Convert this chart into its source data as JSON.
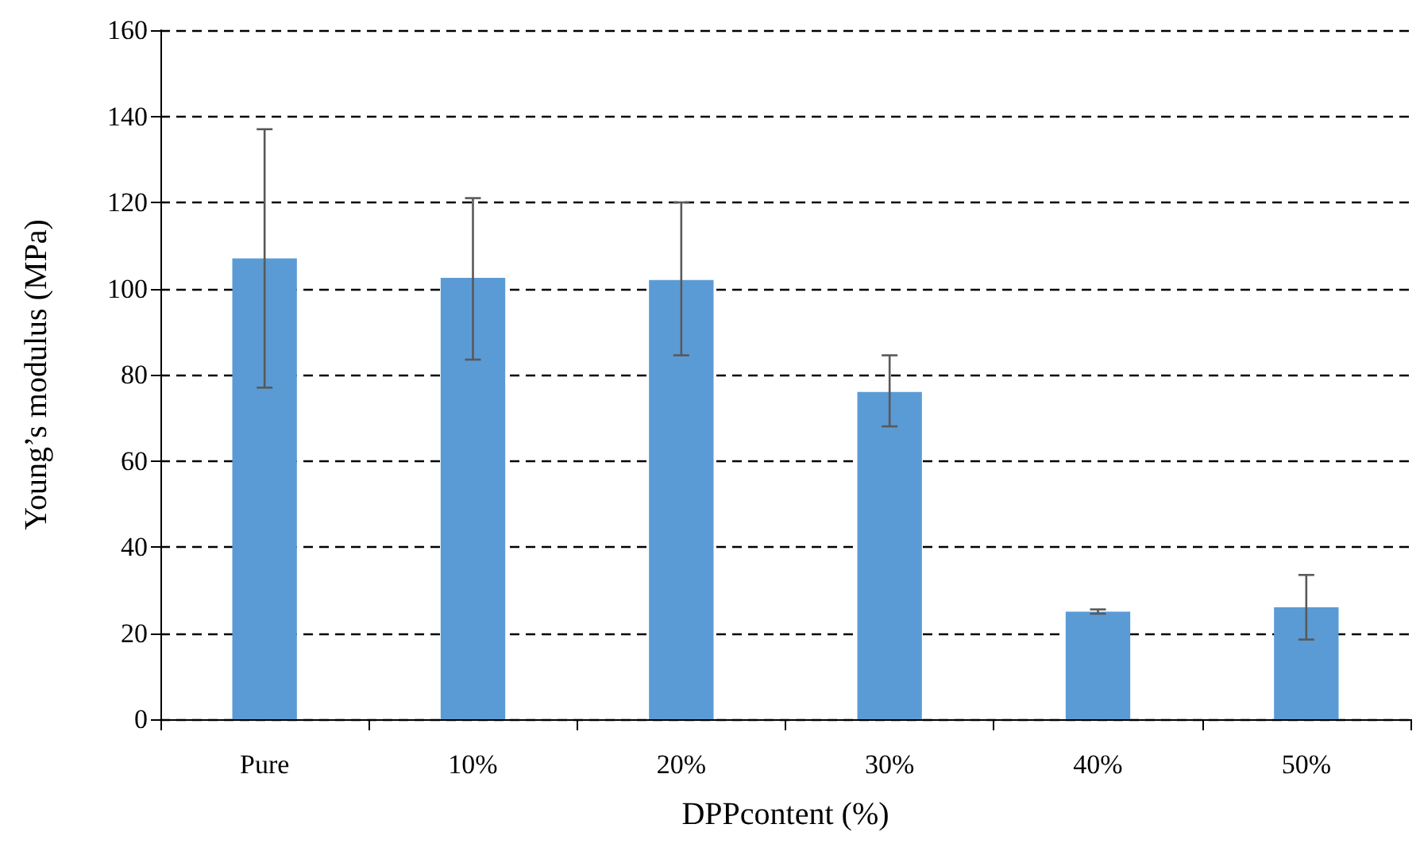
{
  "chart_data": {
    "type": "bar",
    "xlabel": "DPPcontent (%)",
    "ylabel": "Young’s modulus (MPa)",
    "categories": [
      "Pure",
      "10%",
      "20%",
      "30%",
      "40%",
      "50%"
    ],
    "series": [
      {
        "color": "#5b9bd5",
        "values": [
          107,
          102.5,
          102,
          76,
          25,
          26
        ],
        "errors": [
          30,
          [
            83.5,
            121
          ],
          [
            84.5,
            120
          ],
          [
            68,
            84.5
          ],
          0.5,
          [
            18.5,
            33.5
          ]
        ]
      }
    ],
    "ylim": [
      0,
      160
    ],
    "yticks": [
      0,
      20,
      40,
      60,
      80,
      100,
      120,
      140,
      160
    ],
    "grid": "y"
  }
}
